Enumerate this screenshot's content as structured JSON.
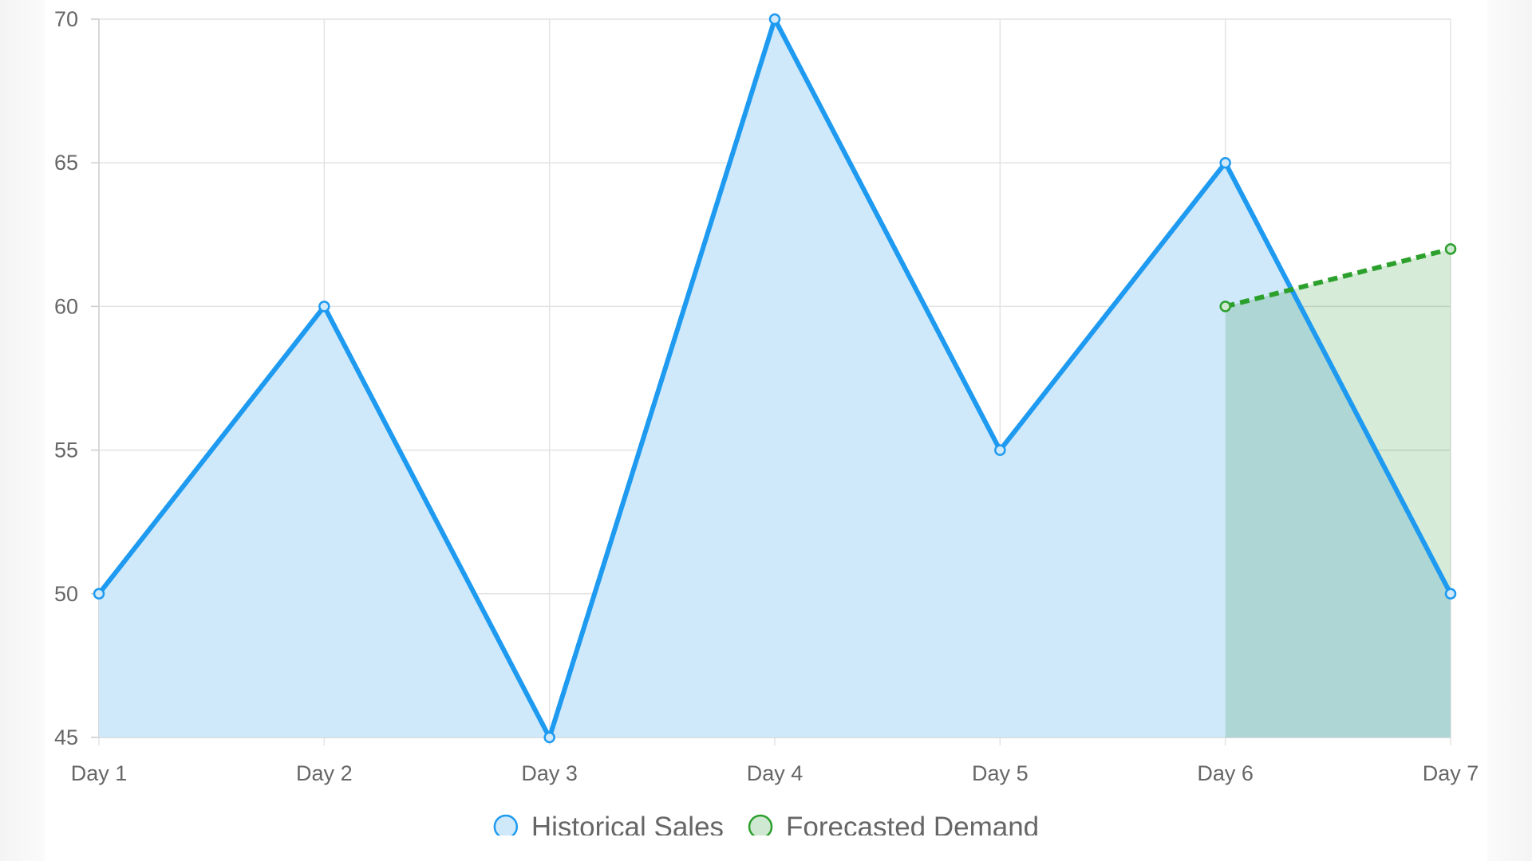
{
  "chart_data": {
    "type": "line",
    "categories": [
      "Day 1",
      "Day 2",
      "Day 3",
      "Day 4",
      "Day 5",
      "Day 6",
      "Day 7"
    ],
    "ylim": [
      45,
      70
    ],
    "yticks": [
      45,
      50,
      55,
      60,
      65,
      70
    ],
    "grid": true,
    "legend_position": "bottom",
    "series": [
      {
        "name": "Historical Sales",
        "values": [
          50,
          60,
          45,
          70,
          55,
          65,
          50
        ],
        "line_color": "#1e9af0",
        "fill_color": "#cfe9fb",
        "dashed": false,
        "filled": true
      },
      {
        "name": "Forecasted Demand",
        "values": [
          null,
          null,
          null,
          null,
          null,
          60,
          62
        ],
        "line_color": "#2ca02c",
        "fill_color": "#cfe8d1",
        "dashed": true,
        "filled": true
      }
    ]
  }
}
